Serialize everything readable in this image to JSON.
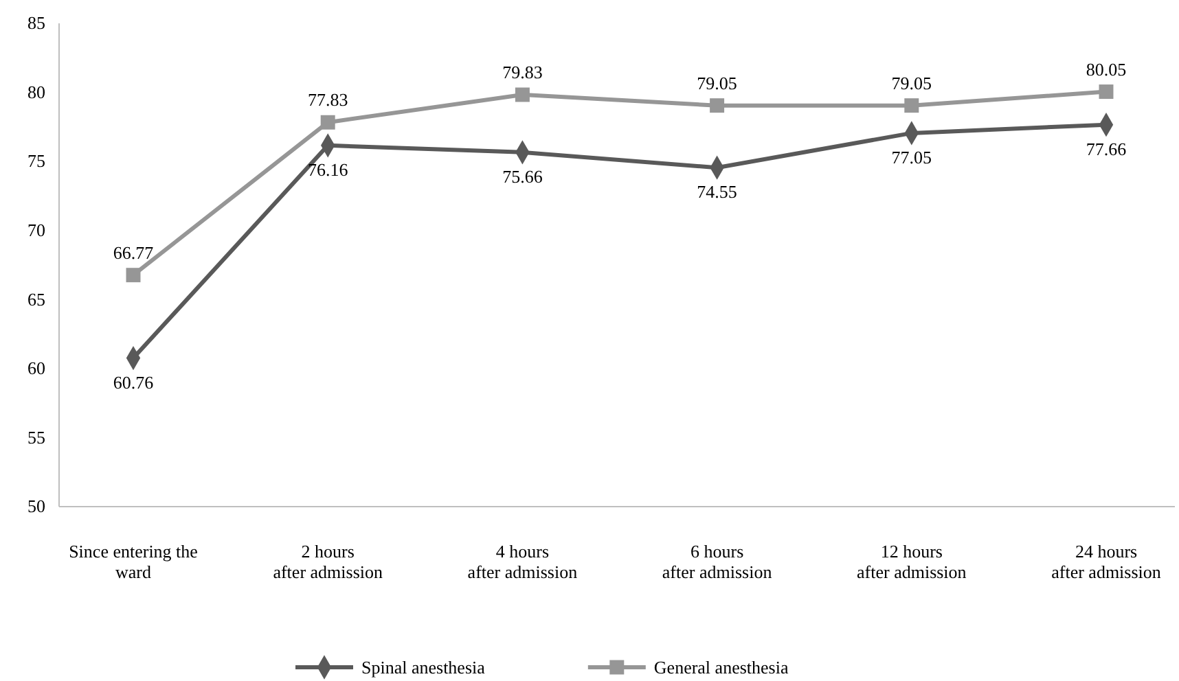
{
  "chart_data": {
    "type": "line",
    "categories": [
      "Since entering the\nward",
      "2 hours\nafter admission",
      "4 hours\nafter admission",
      "6 hours\nafter admission",
      "12 hours\nafter admission",
      "24 hours\nafter admission"
    ],
    "series": [
      {
        "name": "Spinal anesthesia",
        "color": "#595959",
        "marker": "diamond",
        "values": [
          60.76,
          76.16,
          75.66,
          74.55,
          77.05,
          77.66
        ]
      },
      {
        "name": "General anesthesia",
        "color": "#969696",
        "marker": "square",
        "values": [
          66.77,
          77.83,
          79.83,
          79.05,
          79.05,
          80.05
        ]
      }
    ],
    "ylim": [
      50,
      85
    ],
    "yticks": [
      50,
      55,
      60,
      65,
      70,
      75,
      80,
      85
    ],
    "grid": false,
    "legend": "bottom",
    "data_labels": true,
    "line_style": "solid"
  }
}
